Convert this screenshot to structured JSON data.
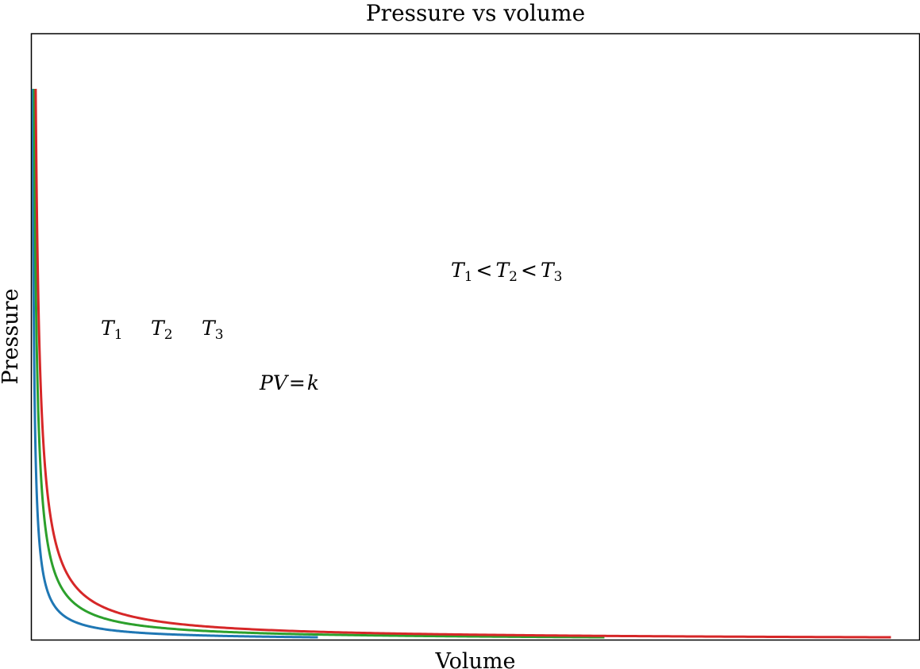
{
  "chart_data": {
    "type": "line",
    "title": "Pressure vs volume",
    "xlabel": "Volume",
    "ylabel": "Pressure",
    "xlim": [
      0,
      31
    ],
    "ylim": [
      0,
      22
    ],
    "grid": false,
    "series": [
      {
        "k": 1,
        "color": "#1f77b4",
        "label": "T",
        "label_sub": "1"
      },
      {
        "k": 2,
        "color": "#2ca02c",
        "label": "T",
        "label_sub": "2"
      },
      {
        "k": 3,
        "color": "#d62728",
        "label": "T",
        "label_sub": "3"
      }
    ],
    "x_start": [
      0.05,
      0.1,
      0.15
    ],
    "x_end": [
      10,
      20,
      30
    ],
    "annotations": {
      "order": {
        "t1": "T",
        "t1_sub": "1",
        "lt1": "<",
        "t2": "T",
        "t2_sub": "2",
        "lt2": "<",
        "t3": "T",
        "t3_sub": "3"
      },
      "law": {
        "left": "PV",
        "eq": "=",
        "right": "k"
      }
    }
  }
}
